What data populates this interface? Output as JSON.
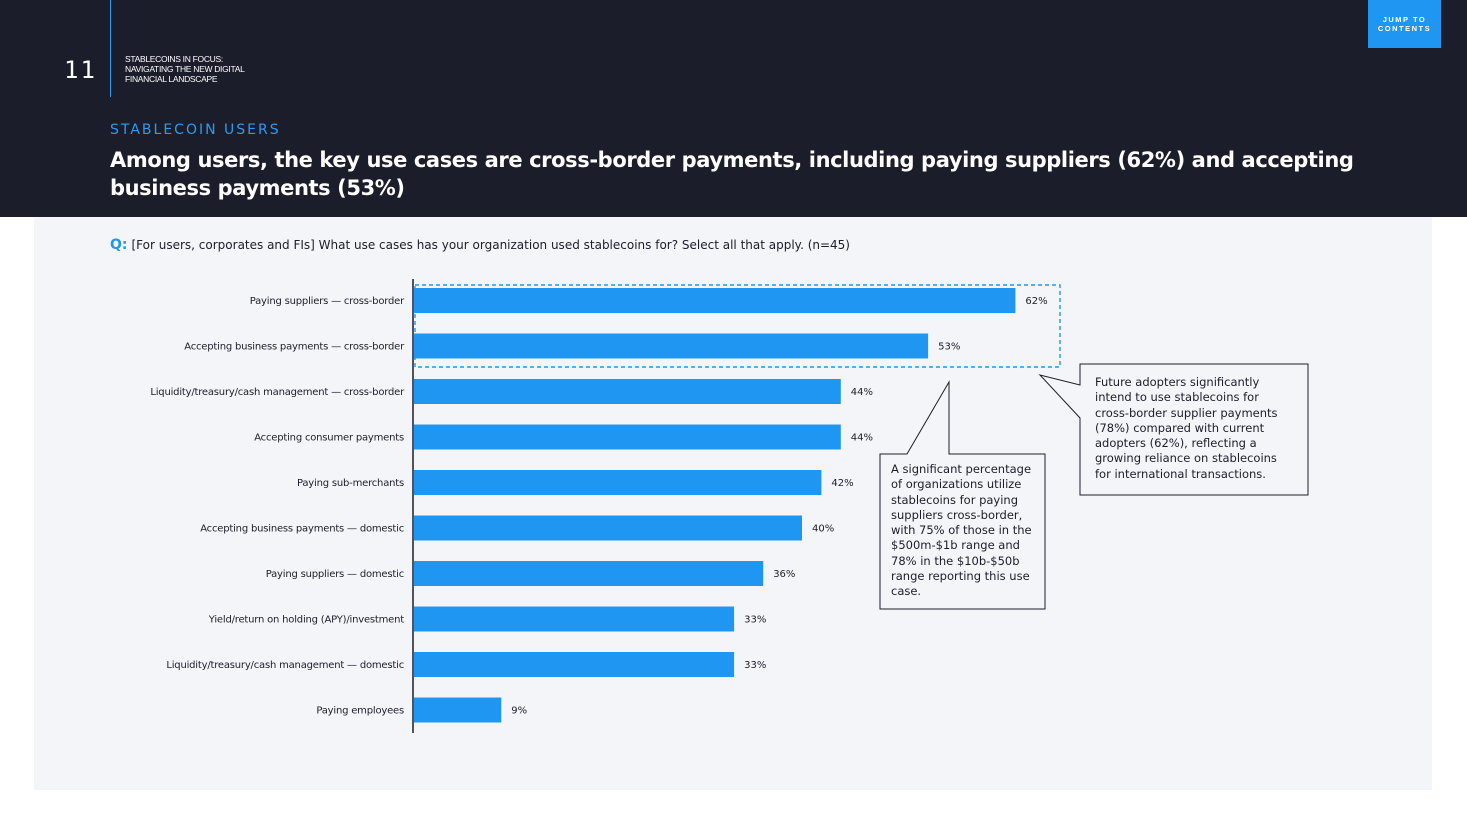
{
  "header": {
    "page_number": "11",
    "doc_title": "STABLECOINS IN FOCUS:\nNAVIGATING THE NEW DIGITAL\nFINANCIAL LANDSCAPE",
    "jump_button": "JUMP TO CONTENTS",
    "section_label": "STABLECOIN USERS",
    "headline": "Among users, the key use cases are cross-border payments, including paying suppliers (62%) and accepting business payments (53%)"
  },
  "question": {
    "prefix": "Q:",
    "text": "[For users, corporates and FIs] What use cases has your organization used stablecoins for? Select all that apply. (n=45)"
  },
  "chart_data": {
    "type": "bar",
    "orientation": "horizontal",
    "categories": [
      "Paying suppliers — cross-border",
      "Accepting business payments — cross-border",
      "Liquidity/treasury/cash management — cross-border",
      "Accepting consumer payments",
      "Paying sub-merchants",
      "Accepting business payments — domestic",
      "Paying suppliers — domestic",
      "Yield/return on holding (APY)/investment",
      "Liquidity/treasury/cash management — domestic",
      "Paying employees"
    ],
    "values": [
      62,
      53,
      44,
      44,
      42,
      40,
      36,
      33,
      33,
      9
    ],
    "value_labels": [
      "62%",
      "53%",
      "44%",
      "44%",
      "42%",
      "40%",
      "36%",
      "33%",
      "33%",
      "9%"
    ],
    "unit": "%",
    "bar_color": "#1f97f2",
    "highlighted_categories": [
      0,
      1
    ]
  },
  "callouts": {
    "left": "A significant percentage of organizations utilize stablecoins for paying suppliers cross-border, with 75% of those in the $500m-$1b range and 78% in the $10b-$50b range reporting this use case.",
    "right": "Future adopters significantly intend to use stablecoins for cross-border supplier payments (78%) compared with current adopters (62%), reflecting a growing reliance on stablecoins for international transactions."
  },
  "colors": {
    "header_bg": "#1c1d2b",
    "accent": "#1f97f2",
    "panel_bg": "#f4f5f9"
  }
}
